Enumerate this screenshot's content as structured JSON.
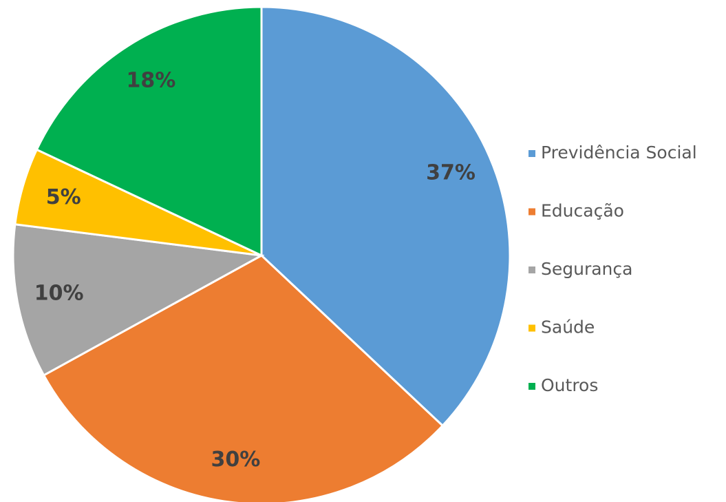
{
  "chart_data": {
    "type": "pie",
    "categories": [
      "Previdência Social",
      "Educação",
      "Segurança",
      "Saúde",
      "Outros"
    ],
    "values": [
      37,
      30,
      10,
      5,
      18
    ],
    "value_labels": [
      "37%",
      "30%",
      "10%",
      "5%",
      "18%"
    ],
    "colors": [
      "#5b9bd5",
      "#ed7d31",
      "#a5a5a5",
      "#ffc000",
      "#00b050"
    ],
    "legend": "right"
  }
}
